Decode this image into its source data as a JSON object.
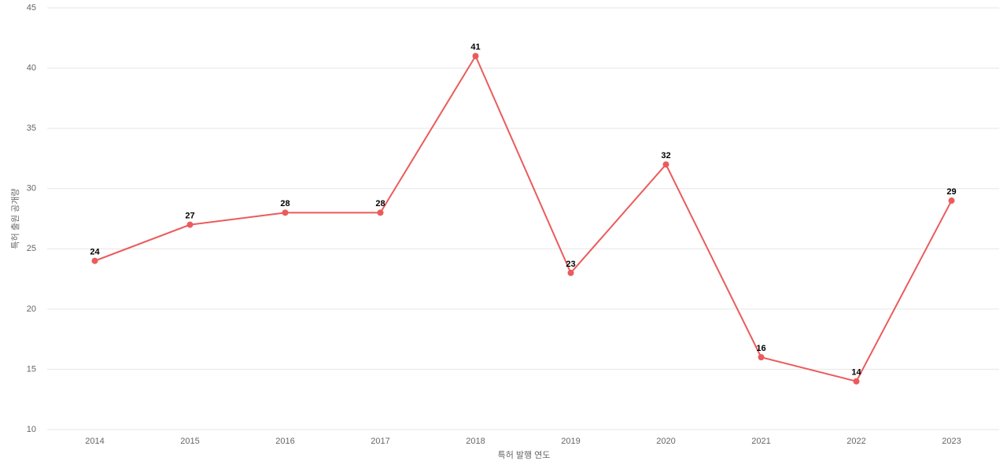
{
  "chart_data": {
    "type": "line",
    "x_label": "특허 발행 연도",
    "y_label": "특허 출원 공개량",
    "categories": [
      "2014",
      "2015",
      "2016",
      "2017",
      "2018",
      "2019",
      "2020",
      "2021",
      "2022",
      "2023"
    ],
    "series": [
      {
        "color": "#eb5b5b",
        "values": [
          24,
          27,
          28,
          28,
          41,
          23,
          32,
          16,
          14,
          29
        ]
      }
    ],
    "ylim": [
      10,
      45
    ],
    "yticks": [
      10,
      15,
      20,
      25,
      30,
      35,
      40,
      45
    ],
    "grid": true
  }
}
